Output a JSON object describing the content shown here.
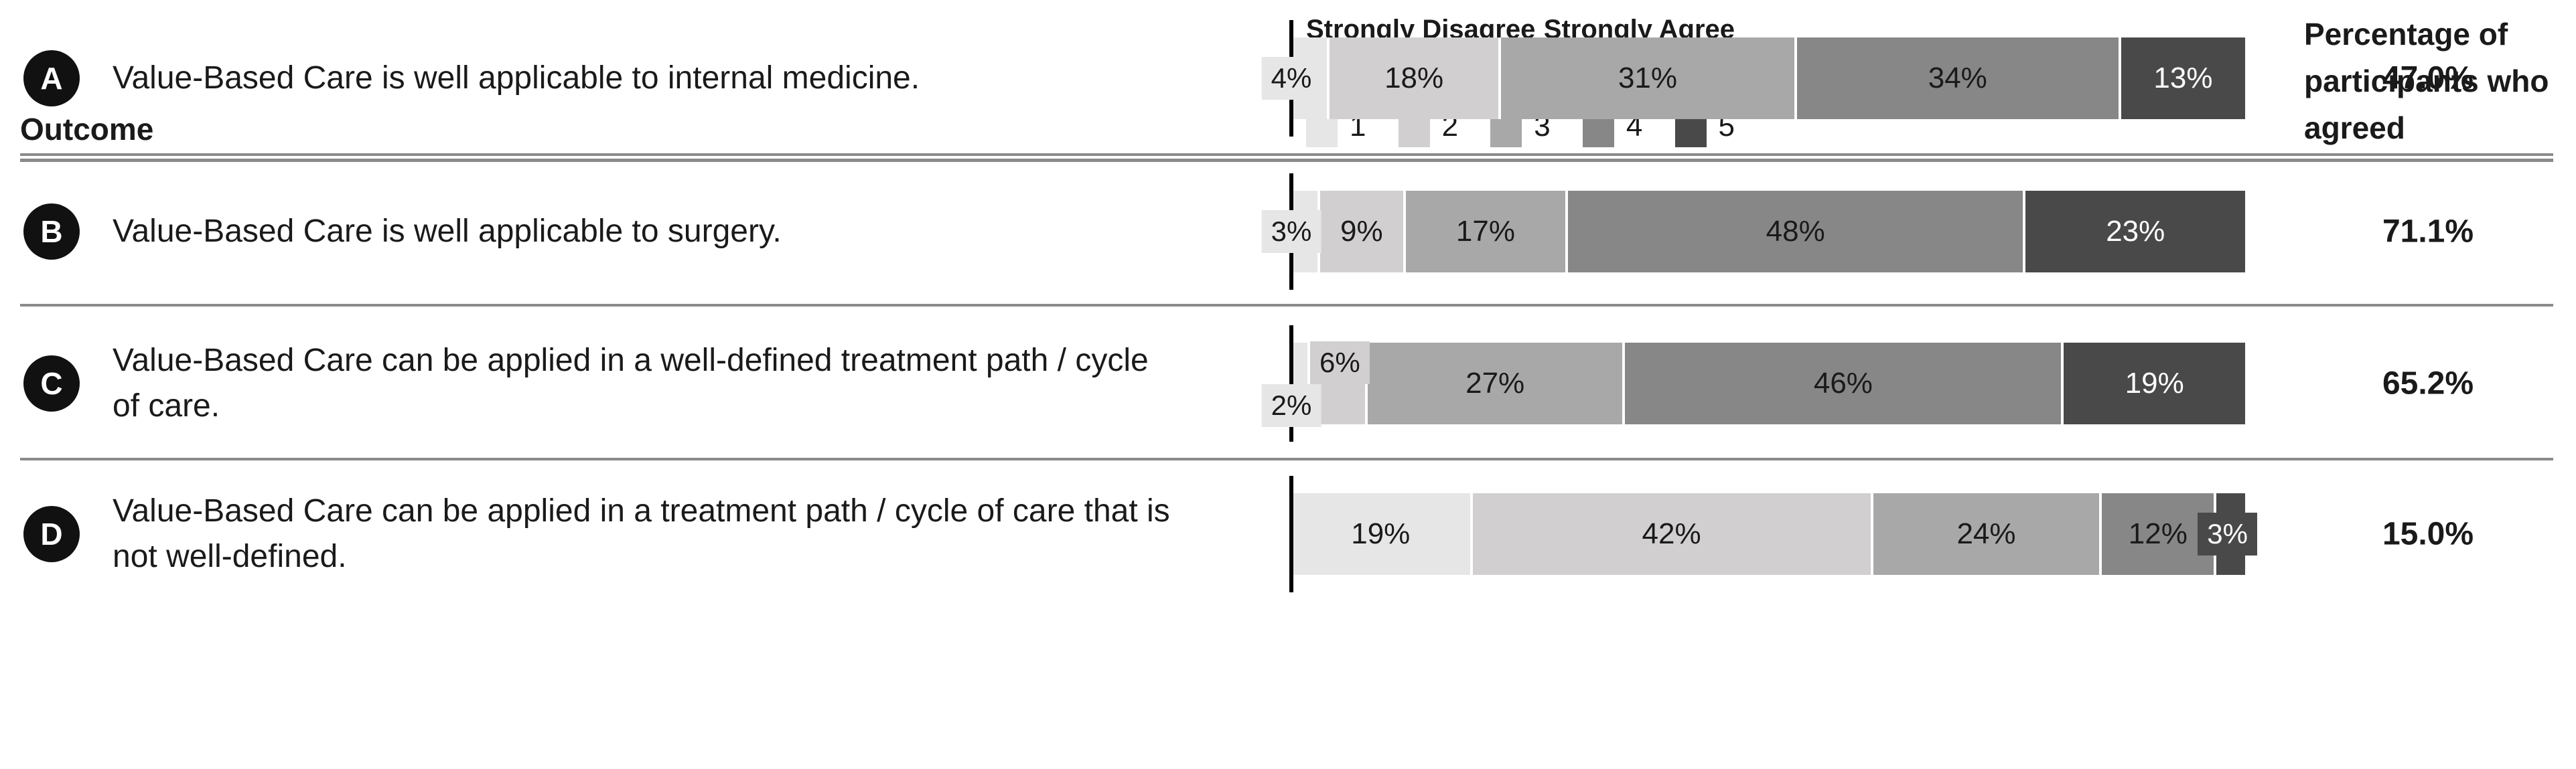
{
  "header": {
    "outcome_label": "Outcome",
    "percentage_label": "Percentage of participants who agreed"
  },
  "legend": {
    "left_label": "Strongly Disagree",
    "right_label": "Strongly Agree",
    "items": [
      {
        "label": "1"
      },
      {
        "label": "2"
      },
      {
        "label": "3"
      },
      {
        "label": "4"
      },
      {
        "label": "5"
      }
    ]
  },
  "chart_data": {
    "type": "bar",
    "subtype": "horizontal-stacked-likert",
    "scale_min_label": "Strongly Disagree",
    "scale_max_label": "Strongly Agree",
    "series_labels": [
      "1",
      "2",
      "3",
      "4",
      "5"
    ],
    "series_colors": [
      "#e7e6e6",
      "#d1cfcf",
      "#a8a8a8",
      "#878787",
      "#494949"
    ],
    "axis_color": "#000000",
    "rule_color": "#8a8a8a",
    "xlim": [
      0,
      100
    ],
    "rows": [
      {
        "id": "A",
        "outcome": "Value-Based Care is well applicable to internal medicine.",
        "values": [
          4,
          18,
          31,
          34,
          13
        ],
        "labels": [
          "4%",
          "18%",
          "31%",
          "34%",
          "13%"
        ],
        "agreed": "47.0%"
      },
      {
        "id": "B",
        "outcome": "Value-Based Care is well applicable to surgery.",
        "values": [
          3,
          9,
          17,
          48,
          23
        ],
        "labels": [
          "3%",
          "9%",
          "17%",
          "48%",
          "23%"
        ],
        "agreed": "71.1%"
      },
      {
        "id": "C",
        "outcome": "Value-Based Care can be applied in a well-defined treatment path / cycle of care.",
        "values": [
          2,
          6,
          27,
          46,
          19
        ],
        "labels": [
          "2%",
          "6%",
          "27%",
          "46%",
          "19%"
        ],
        "agreed": "65.2%"
      },
      {
        "id": "D",
        "outcome": "Value-Based Care can be applied in a treatment path / cycle of care that is not well-defined.",
        "values": [
          19,
          42,
          24,
          12,
          3
        ],
        "labels": [
          "19%",
          "42%",
          "24%",
          "12%",
          "3%"
        ],
        "agreed": "15.0%"
      }
    ]
  }
}
